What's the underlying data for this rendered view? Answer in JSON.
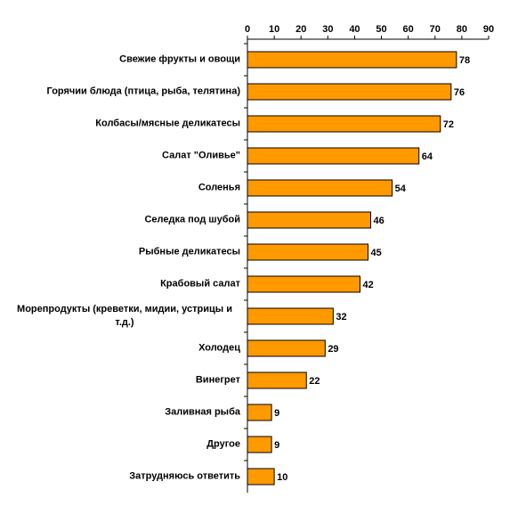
{
  "chart_data": {
    "type": "bar",
    "categories": [
      "Свежие фрукты и овощи",
      "Горячии блюда (птица, рыба, телятина)",
      "Колбасы/мясные деликатесы",
      "Салат \"Оливье\"",
      "Соленья",
      "Селедка под шубой",
      "Рыбные деликатесы",
      "Крабовый салат",
      "Морепродукты (креветки, мидии, устрицы и т.д.)",
      "Холодец",
      "Винегрет",
      "Заливная рыба",
      "Другое",
      "Затрудняюсь ответить"
    ],
    "values": [
      78,
      76,
      72,
      64,
      54,
      46,
      45,
      42,
      32,
      29,
      22,
      9,
      9,
      10
    ],
    "color": "#ff9900",
    "xlim": [
      0,
      90
    ],
    "xticks": [
      0,
      10,
      20,
      30,
      40,
      50,
      60,
      70,
      80,
      90
    ]
  }
}
